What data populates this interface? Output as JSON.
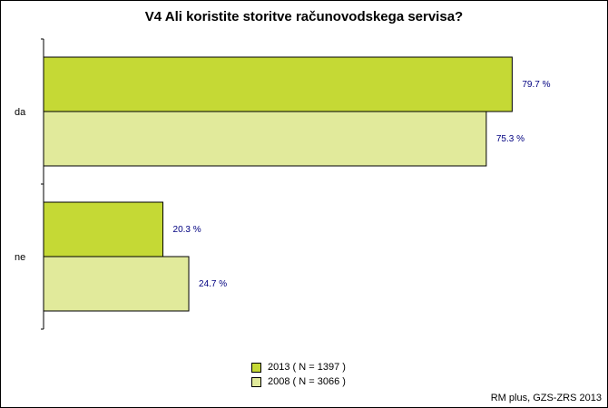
{
  "chart_data": {
    "type": "bar",
    "orientation": "horizontal",
    "title": "V4 Ali koristite storitve računovodskega servisa?",
    "categories": [
      "da",
      "ne"
    ],
    "series": [
      {
        "name": "2013 ( N = 1397 )",
        "values": [
          79.7,
          20.3
        ],
        "labels": [
          "79.7 %",
          "20.3 %"
        ],
        "color": "#c5d935"
      },
      {
        "name": "2008 ( N = 3066 )",
        "values": [
          75.3,
          24.7
        ],
        "labels": [
          "75.3 %",
          "24.7 %"
        ],
        "color": "#e1ea9b"
      }
    ],
    "xlim": [
      0,
      100
    ],
    "grid": false,
    "legend_position": "bottom"
  },
  "source": "RM plus, GZS-ZRS 2013"
}
